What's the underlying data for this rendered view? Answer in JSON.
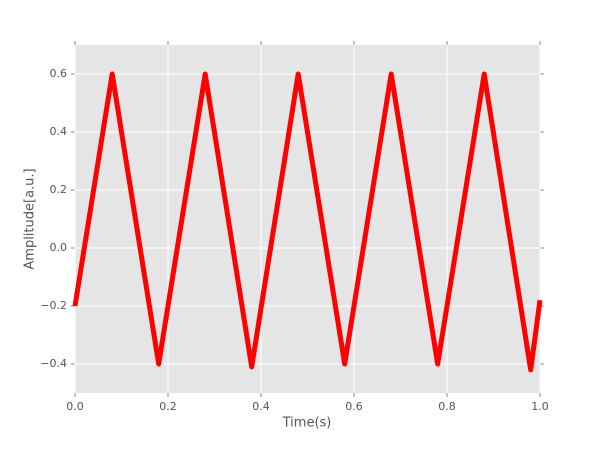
{
  "chart_data": {
    "type": "line",
    "x_label": "Time(s)",
    "y_label": "Amplitude[a.u.]",
    "x": [
      0,
      0.08,
      0.18,
      0.28,
      0.38,
      0.48,
      0.58,
      0.68,
      0.78,
      0.88,
      0.98,
      1.0
    ],
    "series": [
      {
        "color": "#ff0000",
        "values": [
          -0.2,
          0.6,
          -0.4,
          0.6,
          -0.41,
          0.6,
          -0.4,
          0.6,
          -0.4,
          0.6,
          -0.42,
          -0.18
        ]
      }
    ],
    "xlim": [
      0,
      1
    ],
    "xticks": [
      {
        "value": 0,
        "label": "0.0"
      },
      0.2,
      0.4,
      0.6,
      0.8,
      {
        "value": 1,
        "label": "1.0"
      }
    ],
    "ylim": [
      -0.5,
      0.7
    ],
    "yticks": [
      {
        "value": -0.4,
        "label": "−0.4"
      },
      {
        "value": -0.2,
        "label": "−0.2"
      },
      {
        "value": 0,
        "label": "0.0"
      },
      0.2,
      0.4,
      0.6
    ],
    "grid": true,
    "background": "#e5e5e5"
  }
}
